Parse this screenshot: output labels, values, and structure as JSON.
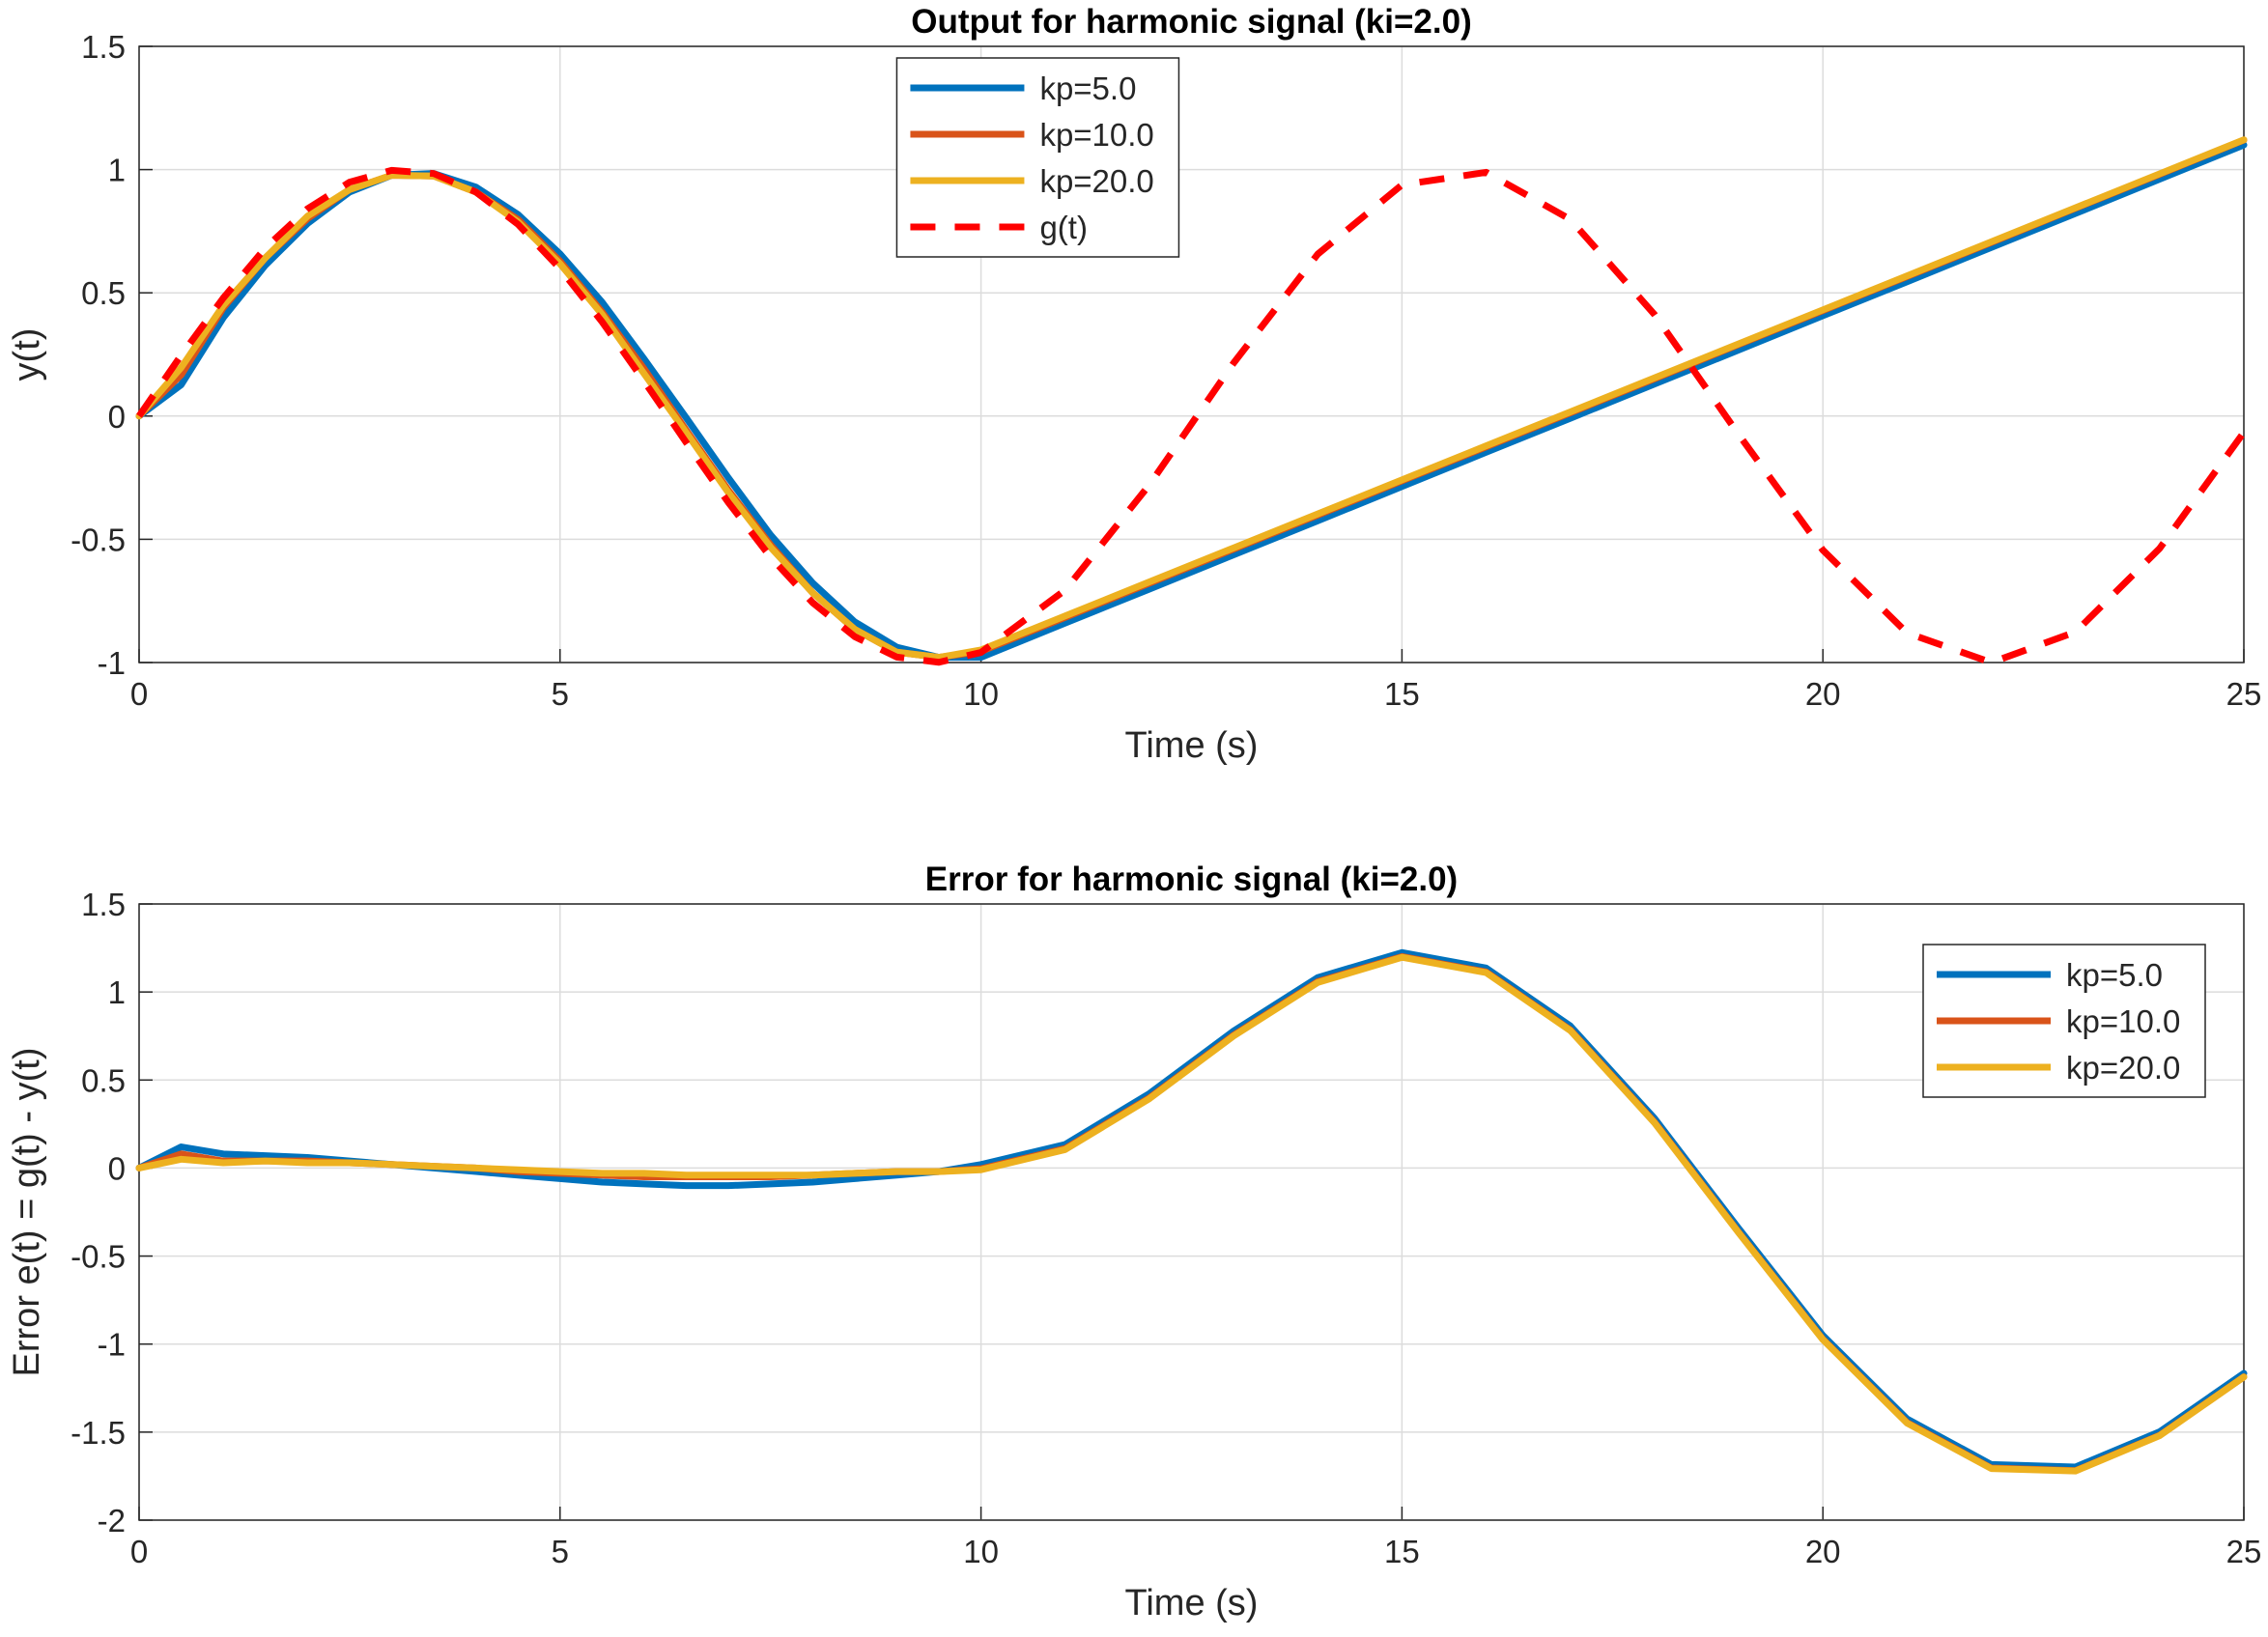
{
  "chart_data": [
    {
      "type": "line",
      "title": "Output for harmonic signal (ki=2.0)",
      "xlabel": "Time (s)",
      "ylabel": "y(t)",
      "x": [
        0,
        0.5,
        1,
        1.5,
        2,
        2.5,
        3,
        3.5,
        4,
        4.5,
        5,
        5.5,
        6,
        6.5,
        7,
        7.5,
        8,
        8.5,
        9,
        9.5,
        10,
        11,
        12,
        13,
        14,
        15,
        16,
        17,
        18,
        19,
        20,
        21,
        22,
        23,
        24,
        25
      ],
      "xlim": [
        0,
        25
      ],
      "xticks": [
        0,
        5,
        10,
        15,
        20,
        25
      ],
      "ylim": [
        -1,
        1.5
      ],
      "yticks": [
        -1,
        -0.5,
        0,
        0.5,
        1,
        1.5
      ],
      "grid": true,
      "legend_location": "north",
      "series": [
        {
          "name": "kp=5.0",
          "color": "#0072BD",
          "linestyle": "solid",
          "values": [
            0,
            0.127,
            0.399,
            0.612,
            0.781,
            0.909,
            0.977,
            0.984,
            0.929,
            0.818,
            0.658,
            0.462,
            0.231,
            -0.008,
            -0.251,
            -0.482,
            -0.677,
            -0.835,
            -0.938,
            -0.979,
            -0.979,
            -0.84,
            -0.702,
            -0.563,
            -0.425,
            -0.286,
            -0.147,
            -0.009,
            0.13,
            0.268,
            0.407,
            0.545,
            0.684,
            0.822,
            0.961,
            1.1
          ]
        },
        {
          "name": "kp=10.0",
          "color": "#D95319",
          "linestyle": "solid",
          "values": [
            0,
            0.167,
            0.439,
            0.642,
            0.801,
            0.919,
            0.977,
            0.974,
            0.909,
            0.798,
            0.628,
            0.422,
            0.191,
            -0.058,
            -0.301,
            -0.522,
            -0.717,
            -0.865,
            -0.958,
            -0.979,
            -0.955,
            -0.817,
            -0.678,
            -0.54,
            -0.402,
            -0.263,
            -0.125,
            0.013,
            0.151,
            0.29,
            0.428,
            0.566,
            0.704,
            0.843,
            0.981,
            1.12
          ]
        },
        {
          "name": "kp=20.0",
          "color": "#EDB120",
          "linestyle": "solid",
          "values": [
            0,
            0.197,
            0.449,
            0.642,
            0.811,
            0.919,
            0.977,
            0.974,
            0.909,
            0.788,
            0.618,
            0.412,
            0.171,
            -0.068,
            -0.311,
            -0.532,
            -0.717,
            -0.865,
            -0.958,
            -0.979,
            -0.949,
            -0.811,
            -0.673,
            -0.535,
            -0.397,
            -0.259,
            -0.121,
            0.017,
            0.155,
            0.293,
            0.431,
            0.569,
            0.707,
            0.845,
            0.983,
            1.121
          ]
        },
        {
          "name": "g(t)",
          "color": "#FF0000",
          "linestyle": "dashed",
          "values": [
            0,
            0.247,
            0.479,
            0.682,
            0.841,
            0.949,
            0.997,
            0.984,
            0.909,
            0.778,
            0.598,
            0.382,
            0.141,
            -0.108,
            -0.351,
            -0.572,
            -0.757,
            -0.895,
            -0.978,
            -0.999,
            -0.959,
            -0.706,
            -0.279,
            0.215,
            0.657,
            0.938,
            0.989,
            0.798,
            0.412,
            -0.075,
            -0.544,
            -0.88,
            -1.0,
            -0.876,
            -0.537,
            -0.066
          ]
        }
      ]
    },
    {
      "type": "line",
      "title": "Error for harmonic signal (ki=2.0)",
      "xlabel": "Time (s)",
      "ylabel": "Error e(t) = g(t) - y(t)",
      "x": [
        0,
        0.5,
        1,
        1.5,
        2,
        2.5,
        3,
        3.5,
        4,
        4.5,
        5,
        5.5,
        6,
        6.5,
        7,
        7.5,
        8,
        8.5,
        9,
        9.5,
        10,
        11,
        12,
        13,
        14,
        15,
        16,
        17,
        18,
        19,
        20,
        21,
        22,
        23,
        24,
        25
      ],
      "xlim": [
        0,
        25
      ],
      "xticks": [
        0,
        5,
        10,
        15,
        20,
        25
      ],
      "ylim": [
        -2,
        1.5
      ],
      "yticks": [
        -2,
        -1.5,
        -1,
        -0.5,
        0,
        0.5,
        1,
        1.5
      ],
      "grid": true,
      "legend_location": "northeast",
      "series": [
        {
          "name": "kp=5.0",
          "color": "#0072BD",
          "linestyle": "solid",
          "values": [
            0,
            0.12,
            0.08,
            0.07,
            0.06,
            0.04,
            0.02,
            0,
            -0.02,
            -0.04,
            -0.06,
            -0.08,
            -0.09,
            -0.1,
            -0.1,
            -0.09,
            -0.08,
            -0.06,
            -0.04,
            -0.02,
            0.02,
            0.134,
            0.423,
            0.778,
            1.082,
            1.224,
            1.136,
            0.807,
            0.282,
            -0.343,
            -0.951,
            -1.425,
            -1.684,
            -1.698,
            -1.498,
            -1.166
          ]
        },
        {
          "name": "kp=10.0",
          "color": "#D95319",
          "linestyle": "solid",
          "values": [
            0,
            0.08,
            0.04,
            0.04,
            0.04,
            0.03,
            0.02,
            0.01,
            0,
            -0.02,
            -0.03,
            -0.04,
            -0.05,
            -0.05,
            -0.05,
            -0.05,
            -0.04,
            -0.03,
            -0.02,
            -0.02,
            -0.004,
            0.111,
            0.399,
            0.755,
            1.059,
            1.201,
            1.114,
            0.785,
            0.261,
            -0.365,
            -0.972,
            -1.446,
            -1.704,
            -1.719,
            -1.518,
            -1.186
          ]
        },
        {
          "name": "kp=20.0",
          "color": "#EDB120",
          "linestyle": "solid",
          "values": [
            0,
            0.05,
            0.03,
            0.04,
            0.03,
            0.03,
            0.02,
            0.01,
            0,
            -0.01,
            -0.02,
            -0.03,
            -0.03,
            -0.04,
            -0.04,
            -0.04,
            -0.04,
            -0.03,
            -0.02,
            -0.02,
            -0.01,
            0.105,
            0.394,
            0.75,
            1.054,
            1.197,
            1.11,
            0.781,
            0.257,
            -0.368,
            -0.975,
            -1.449,
            -1.707,
            -1.721,
            -1.52,
            -1.187
          ]
        }
      ]
    }
  ]
}
